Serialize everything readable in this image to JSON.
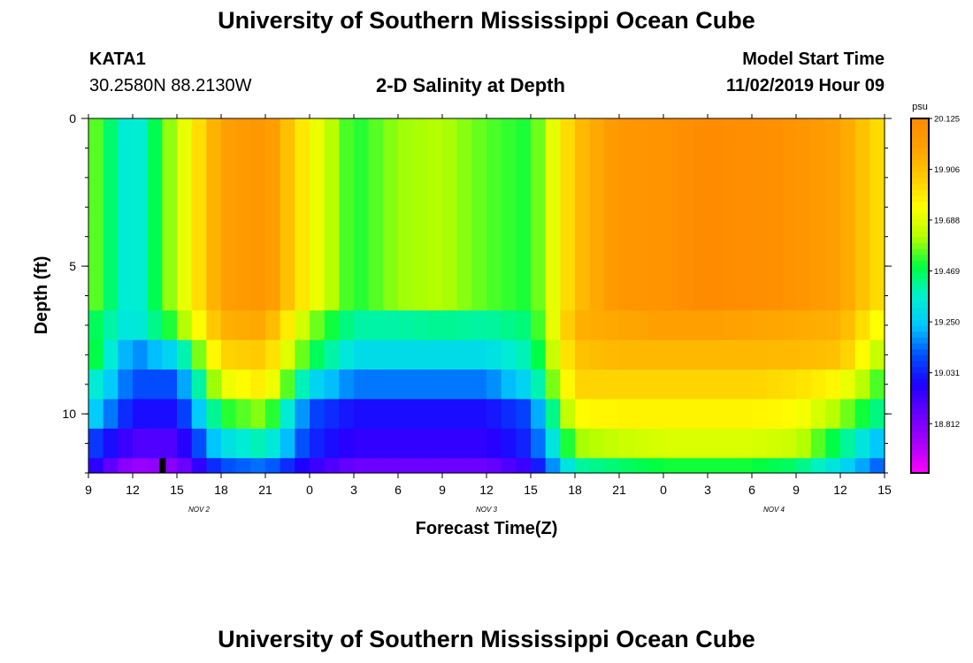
{
  "page": {
    "title": "University of Southern Mississippi Ocean Cube",
    "footer_title": "University of Southern Mississippi Ocean Cube"
  },
  "station": {
    "id": "KATA1",
    "coords": "30.2580N 88.2130W"
  },
  "model": {
    "label": "Model Start Time",
    "time": "11/02/2019 Hour 09"
  },
  "chart_data": {
    "type": "heatmap",
    "title": "2-D Salinity at Depth",
    "xlabel": "Forecast Time(Z)",
    "ylabel": "Depth (ft)",
    "x_start_hour_utc": 9,
    "x_range_hours": [
      0,
      54
    ],
    "ylim": [
      0,
      12
    ],
    "x_ticks": [
      "9",
      "12",
      "15",
      "18",
      "21",
      "0",
      "3",
      "6",
      "9",
      "12",
      "15",
      "18",
      "21",
      "0",
      "3",
      "6",
      "9",
      "12",
      "15"
    ],
    "day_labels": [
      {
        "label": "NOV 2",
        "hour": 7.5
      },
      {
        "label": "NOV 3",
        "hour": 27
      },
      {
        "label": "NOV 4",
        "hour": 46.5
      }
    ],
    "y_ticks": [
      {
        "label": "0",
        "value": 0
      },
      {
        "label": "5",
        "value": 5
      },
      {
        "label": "10",
        "value": 10
      }
    ],
    "colorbar": {
      "unit": "psu",
      "vmin": 18.6,
      "vmax": 20.125,
      "tick_labels": [
        "20.125",
        "19.906",
        "19.688",
        "19.469",
        "19.250",
        "19.031",
        "18.812"
      ],
      "tick_values": [
        20.125,
        19.906,
        19.688,
        19.469,
        19.25,
        19.031,
        18.812
      ],
      "colors": [
        "#ff00ff",
        "#aa00ff",
        "#6a00ff",
        "#1e00ff",
        "#0050ff",
        "#00c8ff",
        "#00f0d0",
        "#00ff40",
        "#b4ff00",
        "#ffff00",
        "#ffcc00",
        "#ffa000",
        "#ff8a00"
      ]
    },
    "depth_layers": [
      {
        "depth_range": [
          0,
          6.5
        ],
        "salinity": [
          19.6,
          19.3,
          19.65,
          20.0,
          20.06,
          19.75,
          19.5,
          19.6,
          19.62,
          19.55,
          19.5,
          19.9,
          20.05,
          20.07,
          20.12,
          20.1,
          20.07,
          20.0,
          19.8
        ]
      },
      {
        "depth_range": [
          6.5,
          7.5
        ],
        "salinity": [
          19.5,
          19.3,
          19.55,
          19.95,
          19.98,
          19.6,
          19.4,
          19.4,
          19.42,
          19.4,
          19.45,
          19.95,
          19.98,
          20.0,
          20.0,
          19.99,
          19.97,
          19.95,
          19.7
        ]
      },
      {
        "depth_range": [
          7.5,
          8.5
        ],
        "salinity": [
          19.55,
          19.15,
          19.3,
          19.85,
          19.88,
          19.5,
          19.3,
          19.3,
          19.3,
          19.3,
          19.4,
          19.9,
          19.93,
          19.93,
          19.93,
          19.93,
          19.92,
          19.9,
          19.6
        ]
      },
      {
        "depth_range": [
          8.5,
          9.5
        ],
        "salinity": [
          19.4,
          19.1,
          19.1,
          19.7,
          19.8,
          19.3,
          19.15,
          19.15,
          19.15,
          19.15,
          19.3,
          19.85,
          19.85,
          19.85,
          19.85,
          19.85,
          19.82,
          19.75,
          19.5
        ]
      },
      {
        "depth_range": [
          9.5,
          10.5
        ],
        "salinity": [
          19.3,
          19.0,
          19.0,
          19.5,
          19.6,
          19.1,
          19.0,
          19.0,
          19.0,
          19.0,
          19.1,
          19.75,
          19.77,
          19.77,
          19.77,
          19.77,
          19.75,
          19.6,
          19.4
        ]
      },
      {
        "depth_range": [
          10.5,
          11.5
        ],
        "salinity": [
          19.1,
          18.9,
          18.9,
          19.3,
          19.4,
          19.05,
          18.95,
          18.95,
          18.95,
          18.95,
          19.05,
          19.6,
          19.65,
          19.68,
          19.68,
          19.68,
          19.65,
          19.45,
          19.2
        ]
      },
      {
        "depth_range": [
          11.5,
          12.0
        ],
        "salinity": [
          19.0,
          18.75,
          18.8,
          19.1,
          19.15,
          18.95,
          18.85,
          18.85,
          18.85,
          18.85,
          18.95,
          19.4,
          19.45,
          19.5,
          19.5,
          19.5,
          19.45,
          19.3,
          19.1
        ]
      }
    ],
    "marker": {
      "hour": 5,
      "depth_range": [
        11.5,
        12.0
      ],
      "color": "#000000"
    }
  }
}
